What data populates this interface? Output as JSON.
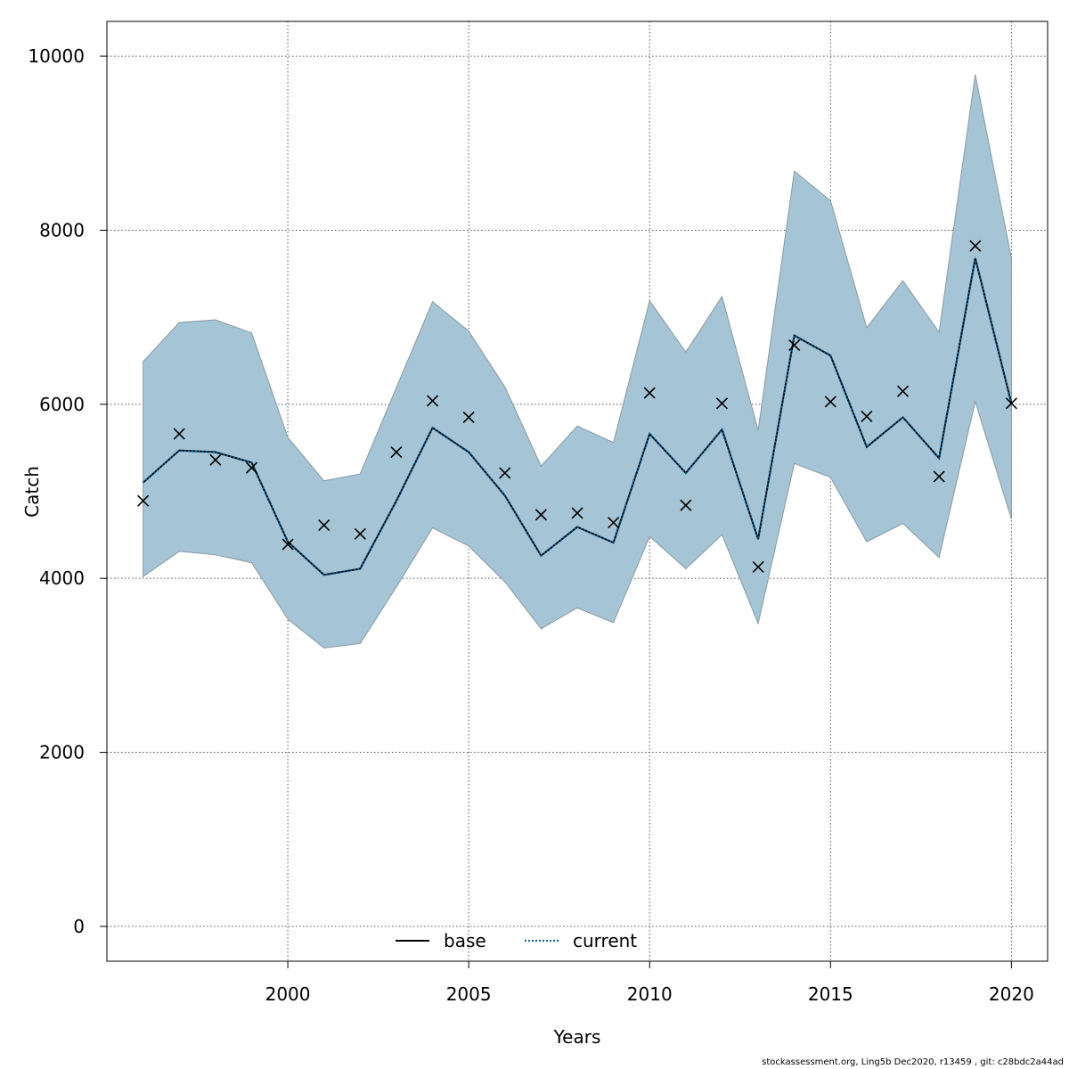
{
  "chart_data": {
    "type": "line",
    "title": "",
    "xlabel": "Years",
    "ylabel": "Catch",
    "xlim": [
      1995,
      2021
    ],
    "ylim": [
      -400,
      10400
    ],
    "xticks": [
      2000,
      2005,
      2010,
      2015,
      2020
    ],
    "yticks": [
      0,
      2000,
      4000,
      6000,
      8000,
      10000
    ],
    "grid": true,
    "legend_position": "bottom-center",
    "x": [
      1996,
      1997,
      1998,
      1999,
      2000,
      2001,
      2002,
      2003,
      2004,
      2005,
      2006,
      2007,
      2008,
      2009,
      2010,
      2011,
      2012,
      2013,
      2014,
      2015,
      2016,
      2017,
      2018,
      2019,
      2020
    ],
    "band": {
      "color": "#a5c4d5",
      "lower": [
        4020,
        4310,
        4270,
        4180,
        3530,
        3200,
        3250,
        3900,
        4580,
        4370,
        3960,
        3420,
        3660,
        3490,
        4480,
        4110,
        4500,
        3480,
        5320,
        5160,
        4420,
        4630,
        4240,
        6030,
        4680
      ],
      "upper": [
        6490,
        6940,
        6970,
        6820,
        5620,
        5120,
        5200,
        6190,
        7180,
        6840,
        6200,
        5290,
        5750,
        5560,
        7190,
        6600,
        7240,
        5700,
        8680,
        8340,
        6880,
        7420,
        6830,
        9790,
        7680
      ]
    },
    "observed": {
      "marker": "x",
      "values": [
        4890,
        5660,
        5360,
        5270,
        4390,
        4610,
        4510,
        5450,
        6040,
        5850,
        5210,
        4730,
        4750,
        4640,
        6130,
        4840,
        6010,
        4130,
        6680,
        6030,
        5860,
        6150,
        5170,
        7820,
        6010
      ]
    },
    "series": [
      {
        "name": "base",
        "color": "#000000",
        "dash": "solid",
        "values": [
          5100,
          5470,
          5450,
          5330,
          4420,
          4040,
          4110,
          4890,
          5730,
          5450,
          4950,
          4260,
          4590,
          4410,
          5660,
          5210,
          5710,
          4450,
          6790,
          6560,
          5510,
          5850,
          5380,
          7680,
          6010
        ]
      },
      {
        "name": "current",
        "color": "#005b96",
        "dash": "dotted",
        "values": [
          5100,
          5470,
          5450,
          5330,
          4420,
          4040,
          4110,
          4890,
          5730,
          5450,
          4950,
          4260,
          4590,
          4410,
          5660,
          5210,
          5710,
          4450,
          6790,
          6560,
          5510,
          5850,
          5380,
          7680,
          6010
        ]
      }
    ]
  },
  "footer": "stockassessment.org, Ling5b  Dec2020, r13459 , git: c28bdc2a44ad"
}
